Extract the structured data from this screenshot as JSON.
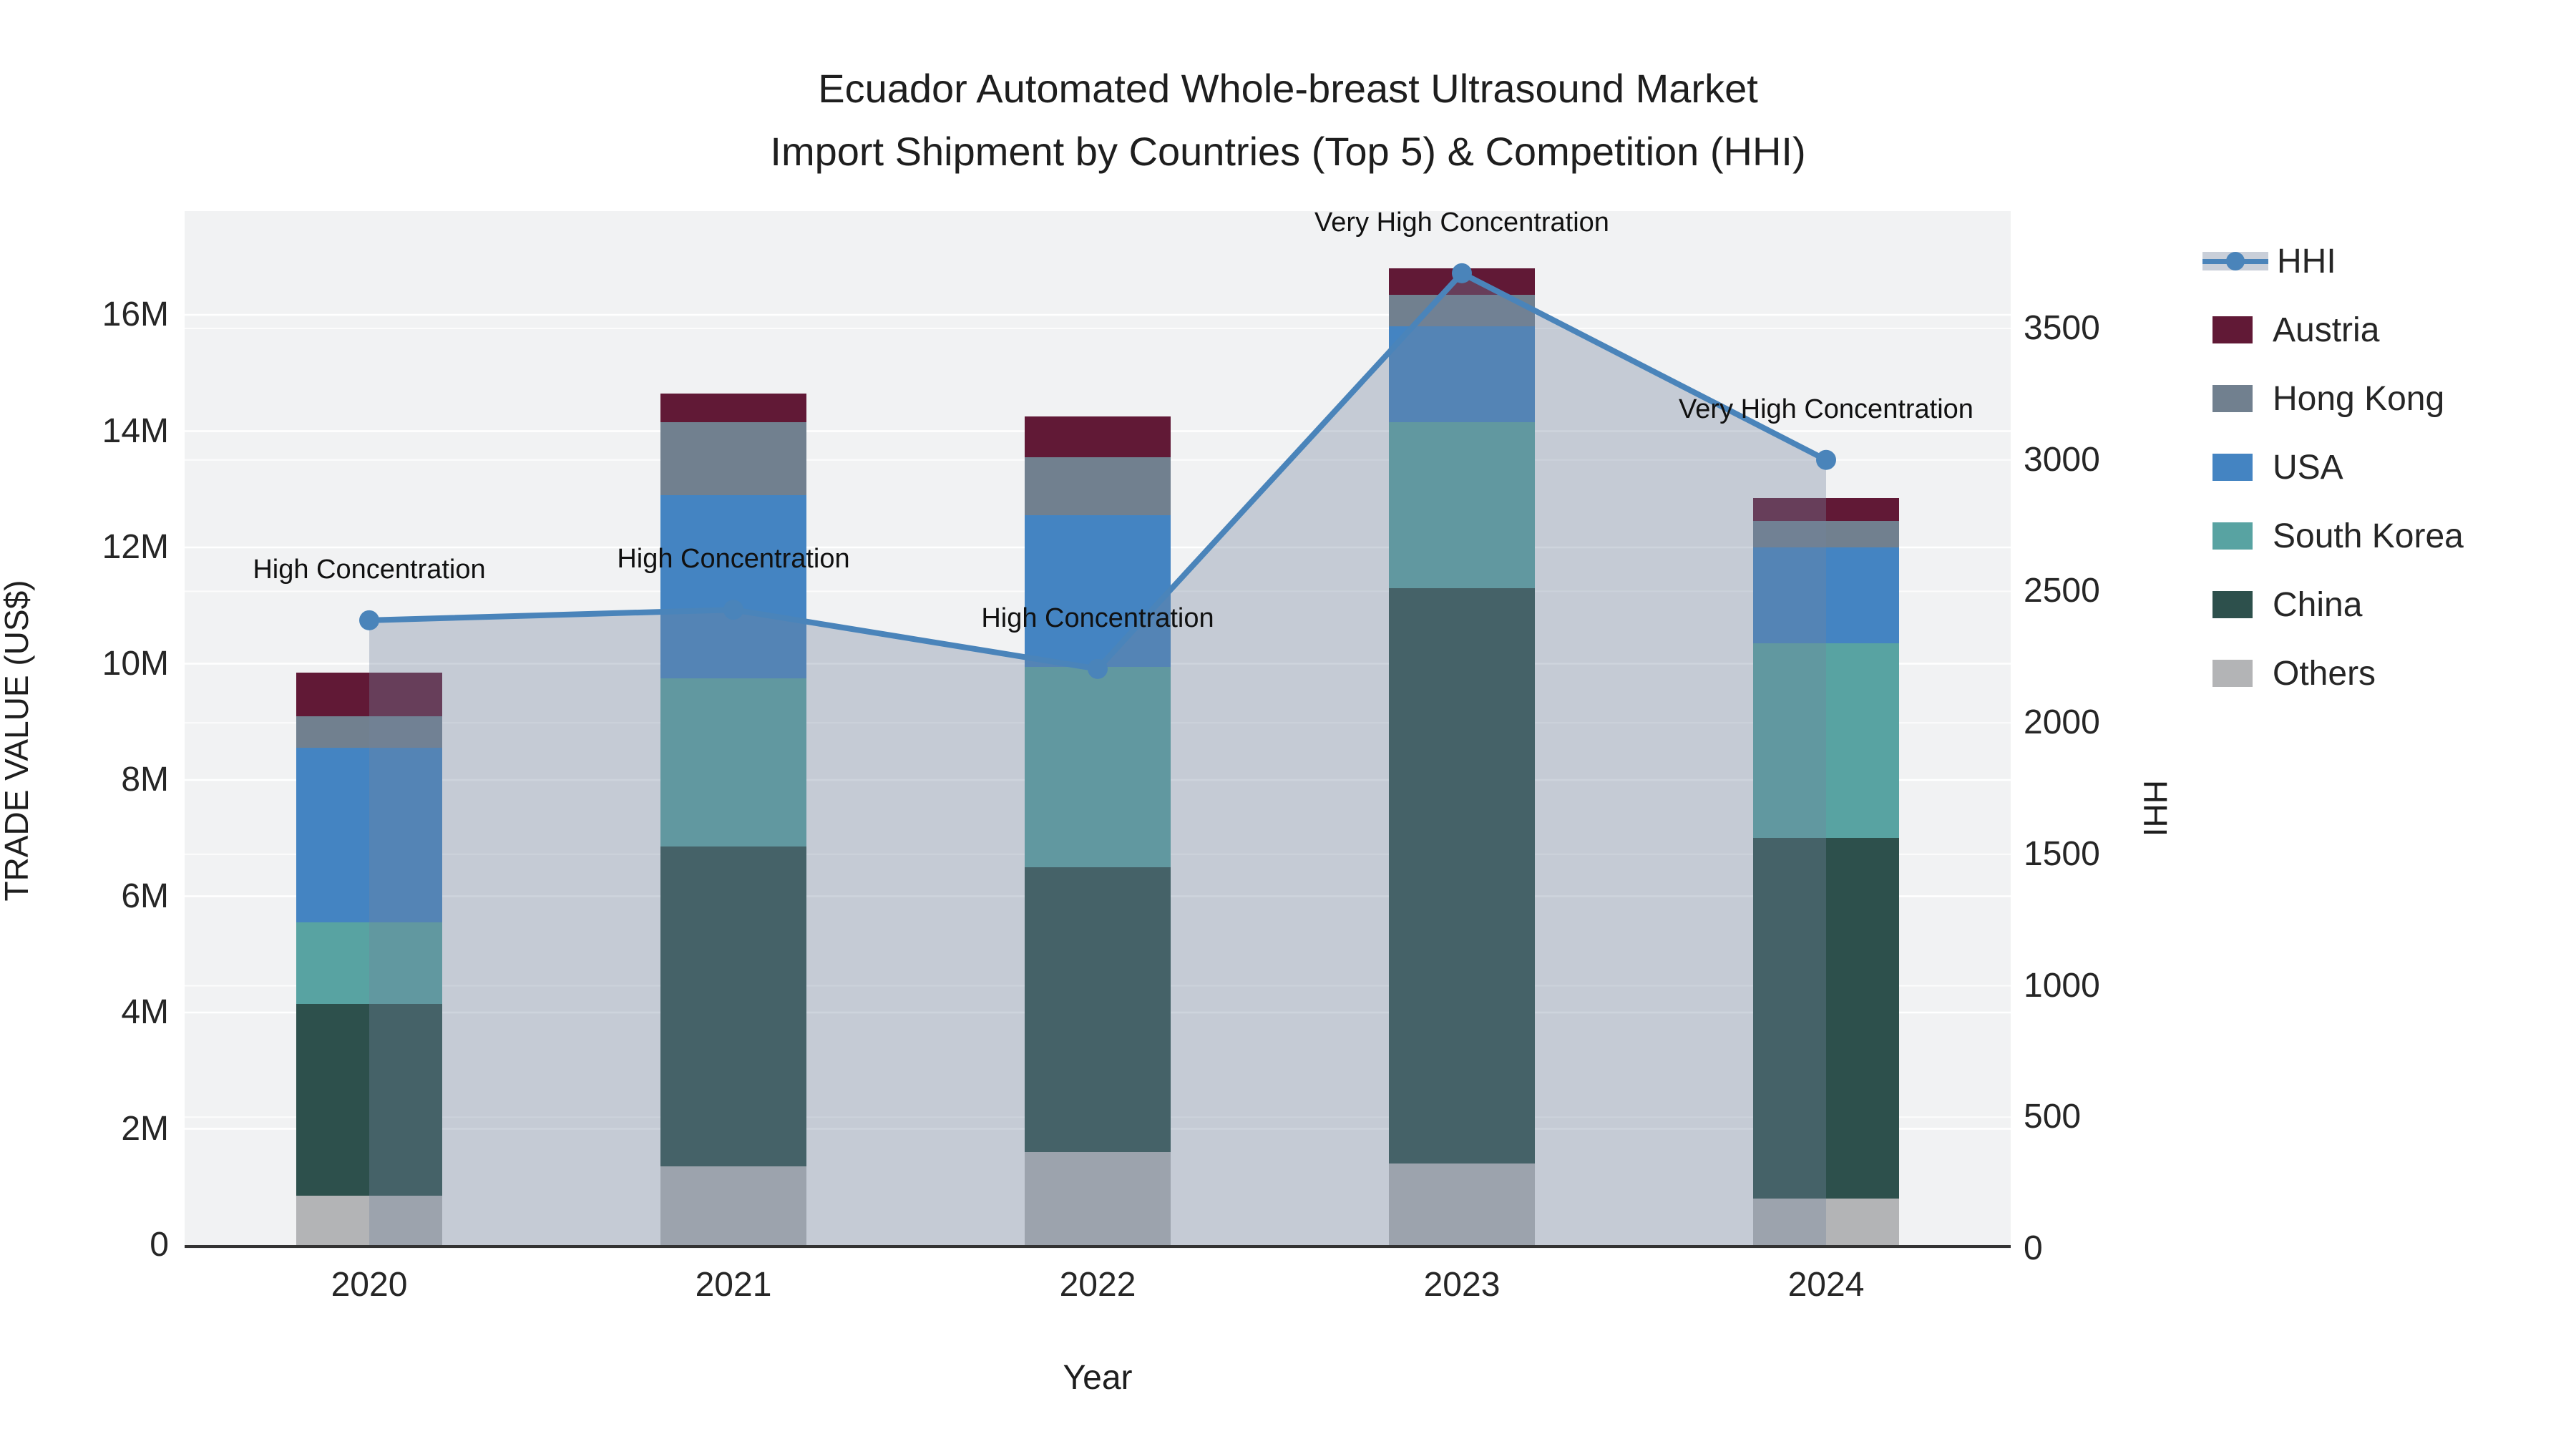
{
  "title": {
    "line1": "Ecuador Automated Whole-breast Ultrasound Market",
    "line2": "Import Shipment by Countries (Top 5) & Competition (HHI)"
  },
  "axes": {
    "x_title": "Year",
    "y_left_title": "TRADE VALUE (US$)",
    "y_right_title": "HHI",
    "y_left_ticks": [
      {
        "label": "0",
        "value": 0
      },
      {
        "label": "2M",
        "value": 2
      },
      {
        "label": "4M",
        "value": 4
      },
      {
        "label": "6M",
        "value": 6
      },
      {
        "label": "8M",
        "value": 8
      },
      {
        "label": "10M",
        "value": 10
      },
      {
        "label": "12M",
        "value": 12
      },
      {
        "label": "14M",
        "value": 14
      },
      {
        "label": "16M",
        "value": 16
      }
    ],
    "y_right_ticks": [
      {
        "label": "0",
        "value": 0
      },
      {
        "label": "500",
        "value": 500
      },
      {
        "label": "1000",
        "value": 1000
      },
      {
        "label": "1500",
        "value": 1500
      },
      {
        "label": "2000",
        "value": 2000
      },
      {
        "label": "2500",
        "value": 2500
      },
      {
        "label": "3000",
        "value": 3000
      },
      {
        "label": "3500",
        "value": 3500
      }
    ]
  },
  "legend": {
    "items": [
      {
        "label": "HHI",
        "type": "line",
        "color": "#4a84ba"
      },
      {
        "label": "Austria",
        "type": "swatch",
        "color": "#611936"
      },
      {
        "label": "Hong Kong",
        "type": "swatch",
        "color": "#71808f"
      },
      {
        "label": "USA",
        "type": "swatch",
        "color": "#4484c2"
      },
      {
        "label": "South Korea",
        "type": "swatch",
        "color": "#58a3a2"
      },
      {
        "label": "China",
        "type": "swatch",
        "color": "#2d504c"
      },
      {
        "label": "Others",
        "type": "swatch",
        "color": "#b3b4b6"
      }
    ]
  },
  "colors": {
    "plot_bg": "#f1f2f3",
    "grid_major": "#ffffff",
    "grid_minor": "rgba(255,255,255,0.75)",
    "axis_line": "#333333",
    "hhi_line": "#4a84ba",
    "hhi_fill": "rgba(114,131,158,0.35)",
    "text": "#1e1e1e"
  },
  "chart_data": {
    "type": "bar",
    "subtype": "stacked-bars-with-line-overlay",
    "categories": [
      "2020",
      "2021",
      "2022",
      "2023",
      "2024"
    ],
    "value_unit_left": "US$ millions",
    "value_unit_right": "HHI index",
    "ylim_left": [
      0,
      17.8
    ],
    "ylim_right": [
      0,
      3950
    ],
    "grid": true,
    "legend_position": "right",
    "series": [
      {
        "name": "Others",
        "color": "#b3b4b6",
        "values": [
          0.85,
          1.35,
          1.6,
          1.4,
          0.8
        ]
      },
      {
        "name": "China",
        "color": "#2d504c",
        "values": [
          3.3,
          5.5,
          4.9,
          9.9,
          6.2
        ]
      },
      {
        "name": "South Korea",
        "color": "#58a3a2",
        "values": [
          1.4,
          2.9,
          3.45,
          2.85,
          3.35
        ]
      },
      {
        "name": "USA",
        "color": "#4484c2",
        "values": [
          3.0,
          3.15,
          2.6,
          1.65,
          1.65
        ]
      },
      {
        "name": "Hong Kong",
        "color": "#71808f",
        "values": [
          0.55,
          1.25,
          1.0,
          0.55,
          0.45
        ]
      },
      {
        "name": "Austria",
        "color": "#611936",
        "values": [
          0.75,
          0.5,
          0.7,
          0.45,
          0.4
        ]
      }
    ],
    "bar_totals": [
      9.85,
      14.65,
      14.25,
      16.8,
      12.85
    ],
    "line_series": {
      "name": "HHI",
      "color": "#4a84ba",
      "fill": "rgba(114,131,158,0.35)",
      "values": [
        2390,
        2430,
        2205,
        3710,
        3000
      ]
    },
    "annotations": [
      {
        "x": "2020",
        "text": "High Concentration"
      },
      {
        "x": "2021",
        "text": "High Concentration"
      },
      {
        "x": "2022",
        "text": "High Concentration"
      },
      {
        "x": "2023",
        "text": "Very High Concentration"
      },
      {
        "x": "2024",
        "text": "Very High Concentration"
      }
    ]
  }
}
